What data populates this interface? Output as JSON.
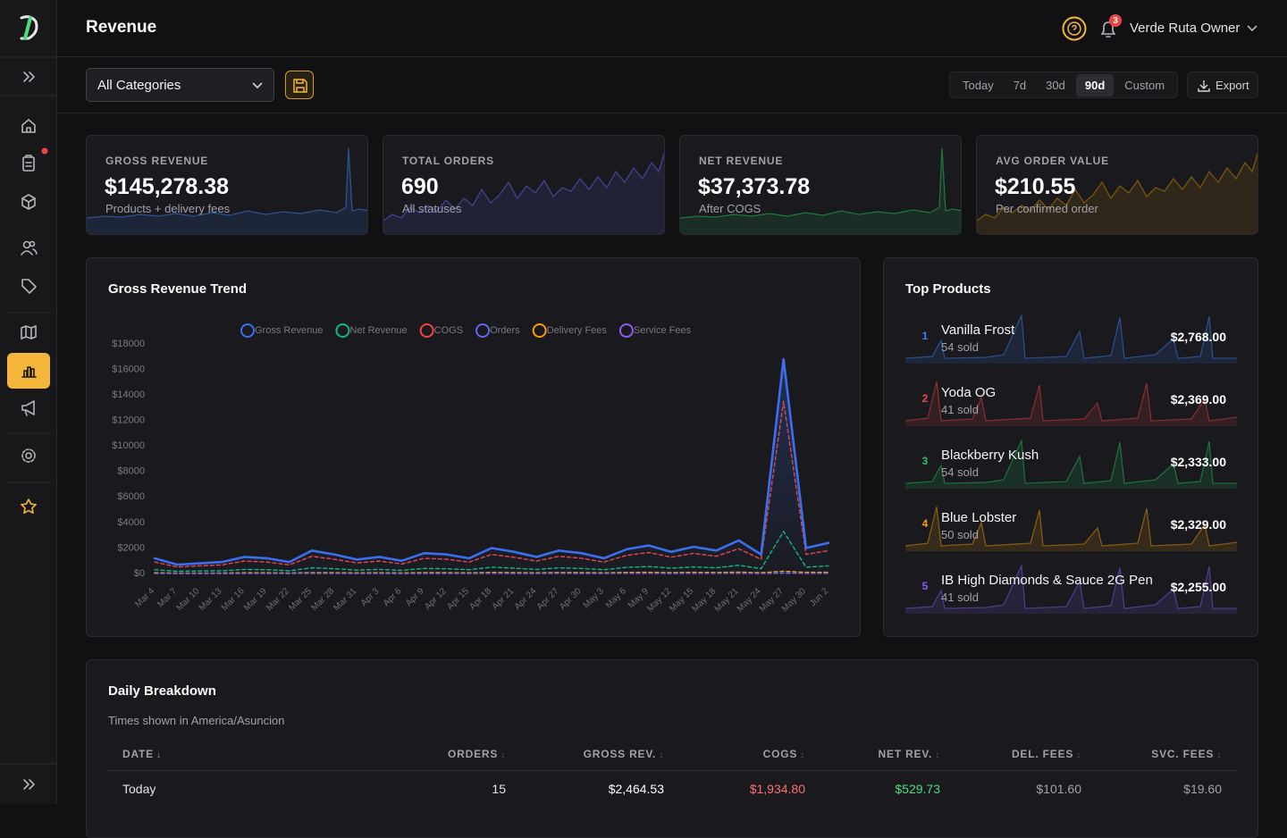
{
  "header": {
    "title": "Revenue",
    "notification_count": 3,
    "user": "Verde Ruta Owner"
  },
  "toolbar": {
    "category_select": "All Categories",
    "ranges": [
      "Today",
      "7d",
      "30d",
      "90d",
      "Custom"
    ],
    "active_range": "90d",
    "export": "Export"
  },
  "kpis": [
    {
      "label": "GROSS REVENUE",
      "value": "$145,278.38",
      "note": "Products + delivery fees",
      "color": "#3b82f6"
    },
    {
      "label": "TOTAL ORDERS",
      "value": "690",
      "note": "All statuses",
      "color": "#6366f1"
    },
    {
      "label": "NET REVENUE",
      "value": "$37,373.78",
      "note": "After COGS",
      "color": "#22c55e"
    },
    {
      "label": "AVG ORDER VALUE",
      "value": "$210.55",
      "note": "Per confirmed order",
      "color": "#ca8a04"
    }
  ],
  "chart_data": {
    "type": "line",
    "title": "Gross Revenue Trend",
    "categories": [
      "Mar 4",
      "Mar 7",
      "Mar 10",
      "Mar 13",
      "Mar 16",
      "Mar 19",
      "Mar 22",
      "Mar 25",
      "Mar 28",
      "Mar 31",
      "Apr 3",
      "Apr 6",
      "Apr 9",
      "Apr 12",
      "Apr 15",
      "Apr 18",
      "Apr 21",
      "Apr 24",
      "Apr 27",
      "Apr 30",
      "May 3",
      "May 6",
      "May 9",
      "May 12",
      "May 15",
      "May 18",
      "May 21",
      "May 24",
      "May 27",
      "May 30",
      "Jun 2"
    ],
    "series": [
      {
        "name": "Gross Revenue",
        "color": "#3b6ff0",
        "dashed": false,
        "values": [
          1200,
          700,
          800,
          900,
          1300,
          1200,
          900,
          1800,
          1500,
          1100,
          1300,
          1000,
          1600,
          1500,
          1200,
          2000,
          1700,
          1300,
          1800,
          1600,
          1200,
          1900,
          2200,
          1700,
          2100,
          1800,
          2600,
          1500,
          16800,
          2000,
          2400
        ]
      },
      {
        "name": "Net Revenue",
        "color": "#10b981",
        "dashed": true,
        "values": [
          300,
          180,
          200,
          220,
          320,
          300,
          220,
          450,
          380,
          270,
          320,
          250,
          400,
          380,
          300,
          500,
          420,
          320,
          450,
          400,
          300,
          480,
          550,
          420,
          520,
          450,
          650,
          380,
          3300,
          500,
          600
        ]
      },
      {
        "name": "COGS",
        "color": "#ef4444",
        "dashed": true,
        "values": [
          900,
          520,
          600,
          680,
          980,
          900,
          680,
          1350,
          1120,
          830,
          980,
          750,
          1200,
          1120,
          900,
          1500,
          1280,
          980,
          1350,
          1200,
          900,
          1420,
          1650,
          1280,
          1580,
          1350,
          1950,
          1120,
          13500,
          1500,
          1800
        ]
      },
      {
        "name": "Orders",
        "color": "#6366f1",
        "dashed": true,
        "values": [
          8,
          5,
          6,
          6,
          9,
          8,
          6,
          11,
          9,
          7,
          8,
          6,
          10,
          9,
          8,
          12,
          10,
          8,
          11,
          10,
          8,
          11,
          13,
          10,
          12,
          11,
          15,
          9,
          25,
          12,
          15
        ]
      },
      {
        "name": "Delivery Fees",
        "color": "#f59e0b",
        "dashed": true,
        "values": [
          60,
          35,
          40,
          45,
          65,
          60,
          45,
          80,
          70,
          55,
          60,
          50,
          75,
          70,
          60,
          90,
          80,
          60,
          85,
          75,
          60,
          90,
          100,
          80,
          95,
          85,
          110,
          70,
          180,
          100,
          100
        ]
      },
      {
        "name": "Service Fees",
        "color": "#8b5cf6",
        "dashed": true,
        "values": [
          12,
          7,
          8,
          9,
          13,
          12,
          9,
          18,
          15,
          11,
          13,
          10,
          16,
          15,
          12,
          20,
          17,
          13,
          18,
          16,
          12,
          19,
          22,
          17,
          21,
          18,
          26,
          15,
          40,
          20,
          20
        ]
      }
    ],
    "ylim": [
      0,
      18000
    ],
    "yticks": [
      {
        "value": 0,
        "label": "$0"
      },
      {
        "value": 2000,
        "label": "$2000"
      },
      {
        "value": 4000,
        "label": "$4000"
      },
      {
        "value": 6000,
        "label": "$6000"
      },
      {
        "value": 8000,
        "label": "$8000"
      },
      {
        "value": 10000,
        "label": "$10000"
      },
      {
        "value": 12000,
        "label": "$12000"
      },
      {
        "value": 14000,
        "label": "$14000"
      },
      {
        "value": 16000,
        "label": "$16000"
      },
      {
        "value": 18000,
        "label": "$18000"
      }
    ],
    "grid": false
  },
  "top_products": {
    "title": "Top Products",
    "items": [
      {
        "rank": 1,
        "name": "Vanilla Frost",
        "sold": "54 sold",
        "revenue": "$2,768.00",
        "color": "#3b82f6"
      },
      {
        "rank": 2,
        "name": "Yoda OG",
        "sold": "41 sold",
        "revenue": "$2,369.00",
        "color": "#ef4444"
      },
      {
        "rank": 3,
        "name": "Blackberry Kush",
        "sold": "54 sold",
        "revenue": "$2,333.00",
        "color": "#22c55e"
      },
      {
        "rank": 4,
        "name": "Blue Lobster",
        "sold": "50 sold",
        "revenue": "$2,329.00",
        "color": "#f59e0b"
      },
      {
        "rank": 5,
        "name": "IB High Diamonds & Sauce 2G Pen",
        "sold": "41 sold",
        "revenue": "$2,255.00",
        "color": "#8b5cf6"
      }
    ]
  },
  "daily_breakdown": {
    "title": "Daily Breakdown",
    "subtitle": "Times shown in America/Asuncion",
    "columns": [
      {
        "label": "DATE",
        "sort": "↓"
      },
      {
        "label": "ORDERS",
        "sort": "↕"
      },
      {
        "label": "GROSS REV.",
        "sort": "↕"
      },
      {
        "label": "COGS",
        "sort": "↕"
      },
      {
        "label": "NET REV.",
        "sort": "↕"
      },
      {
        "label": "DEL. FEES",
        "sort": "↕"
      },
      {
        "label": "SVC. FEES",
        "sort": "↕"
      }
    ],
    "rows": [
      [
        "Today",
        "15",
        "$2,464.53",
        "$1,934.80",
        "$529.73",
        "$101.60",
        "$19.60"
      ]
    ]
  }
}
